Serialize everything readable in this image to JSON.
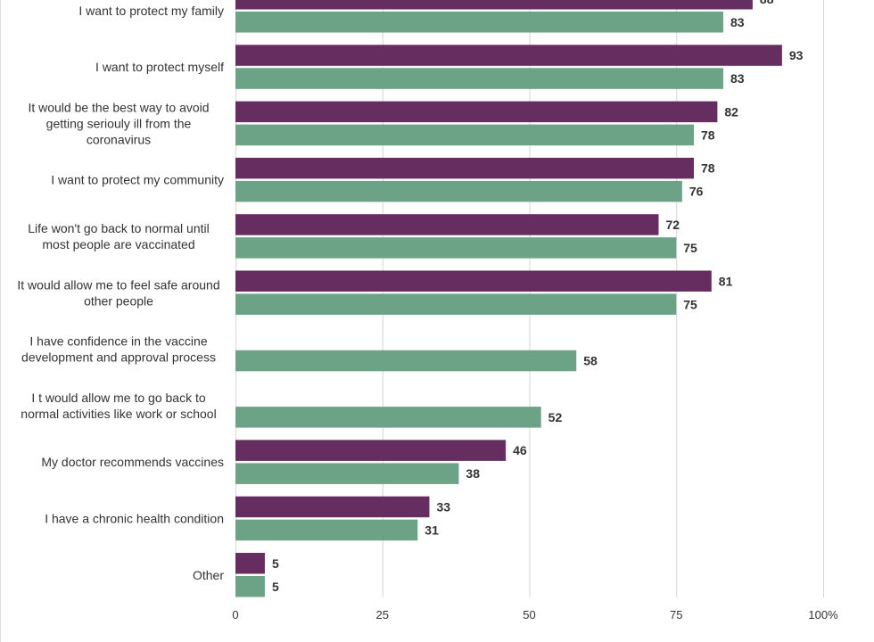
{
  "chart_data": {
    "type": "bar",
    "orientation": "horizontal",
    "categories": [
      [
        "I want to protect my family"
      ],
      [
        "I want to protect myself"
      ],
      [
        "It would be the best way to avoid",
        "getting seriouly ill from the",
        "coronavirus"
      ],
      [
        "I want to protect my community"
      ],
      [
        "Life won't go back to normal until",
        "most people are vaccinated"
      ],
      [
        "It would allow me to feel safe around",
        "other people"
      ],
      [
        "I have confidence in the vaccine",
        "development and approval process"
      ],
      [
        "I t would allow me to go back to",
        "normal activities like work or school"
      ],
      [
        "My doctor recommends vaccines"
      ],
      [
        "I have a chronic health condition"
      ],
      [
        "Other"
      ]
    ],
    "series": [
      {
        "color": "#662d61",
        "values": [
          88,
          93,
          82,
          78,
          72,
          81,
          null,
          null,
          46,
          33,
          5
        ]
      },
      {
        "color": "#6ca386",
        "values": [
          83,
          83,
          78,
          76,
          75,
          75,
          58,
          52,
          38,
          31,
          5
        ]
      }
    ],
    "xlim": [
      0,
      100
    ],
    "xticks": [
      "0",
      "25",
      "50",
      "75",
      "100%"
    ],
    "grid": true
  }
}
